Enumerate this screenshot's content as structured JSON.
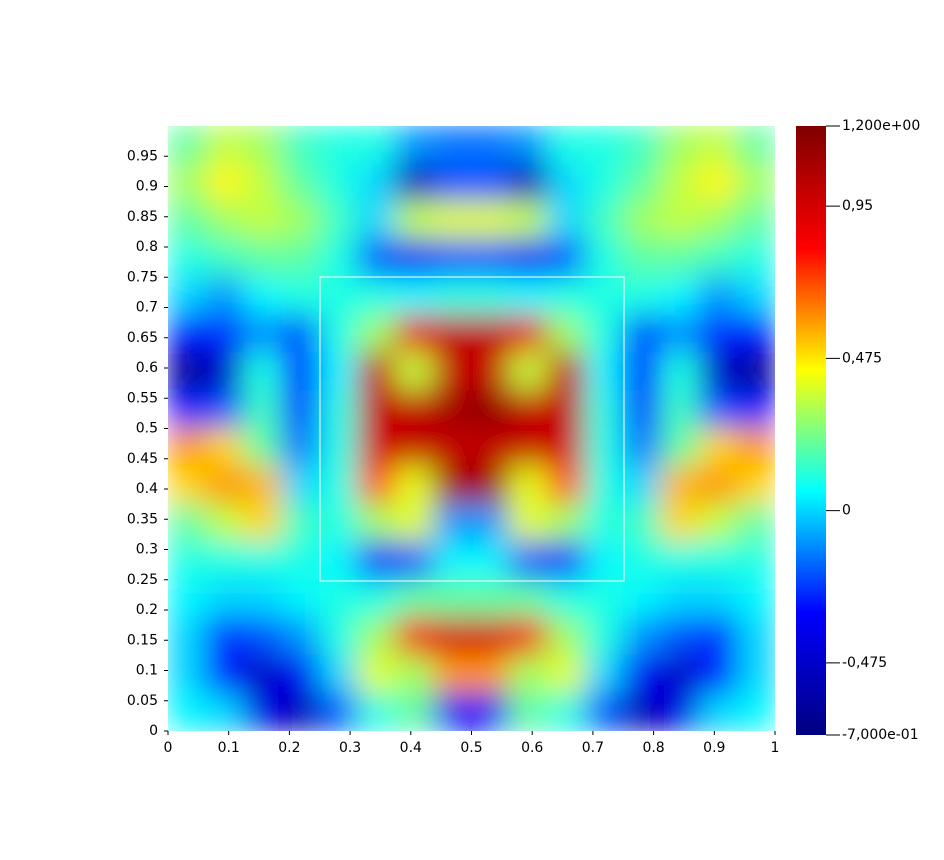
{
  "chart_data": {
    "type": "heatmap",
    "x": [
      0.031,
      0.094,
      0.156,
      0.219,
      0.281,
      0.344,
      0.406,
      0.469,
      0.531,
      0.594,
      0.656,
      0.719,
      0.781,
      0.844,
      0.906,
      0.969
    ],
    "y": [
      0.969,
      0.906,
      0.844,
      0.781,
      0.719,
      0.656,
      0.594,
      0.531,
      0.469,
      0.406,
      0.344,
      0.281,
      0.219,
      0.156,
      0.094,
      0.031
    ],
    "z": [
      [
        0.2,
        0.35,
        0.3,
        0.15,
        0.1,
        0.1,
        -0.1,
        -0.15,
        -0.15,
        -0.1,
        0.1,
        0.1,
        0.15,
        0.3,
        0.35,
        0.2
      ],
      [
        0.3,
        0.45,
        0.35,
        0.2,
        0.1,
        0.0,
        -0.55,
        -0.2,
        -0.2,
        -0.55,
        0.0,
        0.1,
        0.2,
        0.35,
        0.45,
        0.3
      ],
      [
        0.2,
        0.3,
        0.35,
        0.3,
        0.15,
        0.0,
        0.35,
        0.4,
        0.4,
        0.35,
        0.0,
        0.15,
        0.3,
        0.35,
        0.3,
        0.2
      ],
      [
        0.1,
        0.15,
        0.2,
        0.2,
        0.1,
        -0.2,
        -0.35,
        -0.2,
        -0.2,
        -0.35,
        -0.2,
        0.1,
        0.2,
        0.2,
        0.15,
        0.1
      ],
      [
        0.0,
        -0.1,
        0.05,
        0.1,
        0.1,
        0.1,
        0.05,
        0.1,
        0.1,
        0.05,
        0.1,
        0.1,
        0.1,
        0.05,
        -0.1,
        0.0
      ],
      [
        -0.3,
        -0.25,
        -0.1,
        -0.2,
        0.1,
        0.3,
        0.9,
        1.0,
        1.0,
        0.9,
        0.3,
        0.1,
        -0.2,
        -0.1,
        -0.25,
        -0.3
      ],
      [
        -0.65,
        -0.5,
        0.1,
        -0.3,
        0.05,
        1.0,
        0.35,
        1.0,
        1.0,
        0.35,
        1.0,
        0.05,
        -0.3,
        0.1,
        -0.5,
        -0.65
      ],
      [
        -0.3,
        -0.2,
        0.15,
        -0.25,
        0.1,
        1.0,
        1.0,
        1.1,
        1.15,
        1.0,
        1.0,
        0.1,
        -0.25,
        0.15,
        -0.2,
        -0.3
      ],
      [
        0.6,
        0.5,
        0.2,
        -0.15,
        0.1,
        0.95,
        1.0,
        1.0,
        1.0,
        1.0,
        0.95,
        0.1,
        -0.15,
        0.2,
        0.5,
        0.6
      ],
      [
        0.5,
        0.6,
        0.55,
        0.0,
        0.1,
        0.7,
        0.4,
        1.1,
        1.1,
        0.4,
        0.7,
        0.1,
        0.0,
        0.55,
        0.6,
        0.5
      ],
      [
        0.2,
        0.35,
        0.5,
        0.15,
        0.1,
        0.3,
        0.4,
        -0.1,
        -0.1,
        0.4,
        0.3,
        0.1,
        0.15,
        0.5,
        0.35,
        0.2
      ],
      [
        0.1,
        0.1,
        0.1,
        0.1,
        0.05,
        -0.3,
        -0.2,
        0.05,
        0.05,
        -0.2,
        -0.3,
        0.05,
        0.1,
        0.1,
        0.1,
        0.1
      ],
      [
        0.05,
        0.0,
        0.0,
        0.05,
        0.1,
        0.1,
        0.2,
        0.2,
        0.2,
        0.2,
        0.1,
        0.1,
        0.05,
        0.0,
        0.0,
        0.05
      ],
      [
        0.0,
        -0.25,
        -0.2,
        -0.1,
        0.1,
        0.3,
        0.85,
        0.95,
        0.95,
        0.85,
        0.3,
        0.1,
        -0.1,
        -0.2,
        -0.25,
        0.0
      ],
      [
        0.0,
        -0.3,
        -0.5,
        -0.35,
        0.0,
        0.4,
        0.3,
        0.6,
        0.6,
        0.3,
        0.4,
        0.0,
        -0.35,
        -0.5,
        -0.3,
        0.0
      ],
      [
        0.05,
        0.0,
        -0.4,
        -0.55,
        -0.2,
        0.1,
        0.2,
        -0.35,
        -0.35,
        0.2,
        0.1,
        -0.2,
        -0.55,
        -0.4,
        0.0,
        0.05
      ]
    ],
    "xlim": [
      0,
      1
    ],
    "xticks": [
      0,
      0.1,
      0.2,
      0.3,
      0.4,
      0.5,
      0.6,
      0.7,
      0.8,
      0.9,
      1
    ],
    "ylim": [
      0,
      1
    ],
    "yticks": [
      0,
      0.05,
      0.1,
      0.15,
      0.2,
      0.25,
      0.3,
      0.35,
      0.4,
      0.45,
      0.5,
      0.55,
      0.6,
      0.65,
      0.7,
      0.75,
      0.8,
      0.85,
      0.9,
      0.95
    ],
    "zlim": [
      -0.7,
      1.2
    ],
    "zticks": [
      {
        "value": 1.2,
        "label": "1,200e+00"
      },
      {
        "value": 0.95,
        "label": "0,95"
      },
      {
        "value": 0.475,
        "label": "0,475"
      },
      0,
      {
        "value": -0.475,
        "label": "-0,475"
      },
      {
        "value": -0.7,
        "label": "-7,000e-01"
      }
    ],
    "colormap": [
      "#00007f",
      "#0000ff",
      "#00ffff",
      "#ffff00",
      "#ff0000",
      "#7f0000"
    ]
  }
}
